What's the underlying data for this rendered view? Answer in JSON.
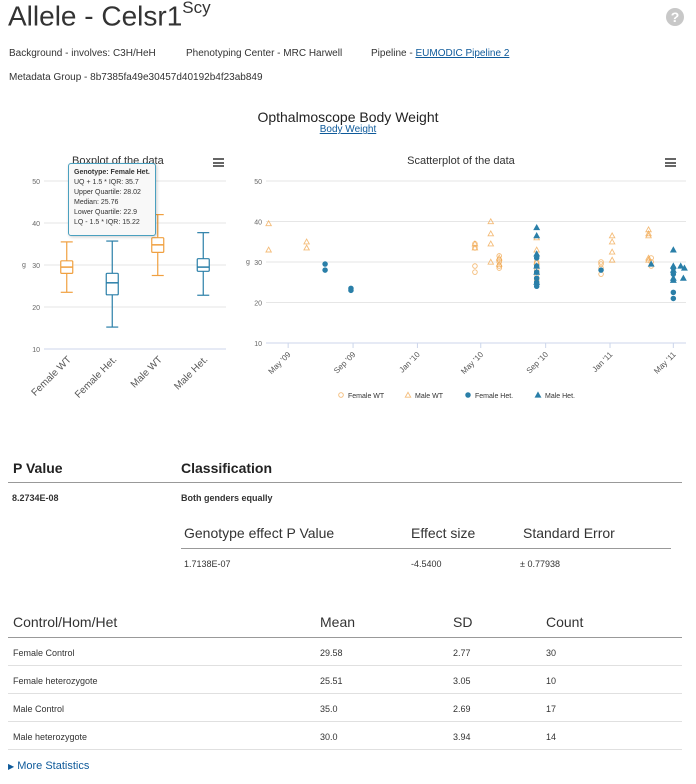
{
  "header": {
    "title": "Allele - Celsr1",
    "title_sup": "Scy",
    "background_label": "Background - involves: C3H/HeH",
    "center_label": "Phenotyping Center - MRC Harwell",
    "pipeline_label": "Pipeline - ",
    "pipeline_link": "EUMODIC Pipeline 2",
    "metadata_group": "Metadata Group - 8b7385fa49e30457d40192b4f23ab849",
    "help_icon": "?"
  },
  "figure": {
    "title": "Opthalmoscope Body Weight",
    "subtitle_link": "Body Weight"
  },
  "colors": {
    "wt": "#f0a040",
    "het": "#2a7fa8",
    "grid": "#e6e6e6"
  },
  "tooltip": {
    "heading": "Genotype: Female Het.",
    "lines": [
      "UQ + 1.5 * IQR: 35.7",
      "Upper Quartile: 28.02",
      "Median: 25.76",
      "Lower Quartile: 22.9",
      "LQ - 1.5 * IQR: 15.22"
    ]
  },
  "chart_data": [
    {
      "type": "box",
      "title": "Boxplot of the data",
      "ylabel": "g",
      "ylim": [
        10,
        50
      ],
      "yticks": [
        "50",
        "40",
        "30",
        "20",
        "10"
      ],
      "categories": [
        "Female WT",
        "Female Het.",
        "Male WT",
        "Male Het."
      ],
      "boxes": [
        {
          "name": "Female WT",
          "low": 23.5,
          "q1": 28.0,
          "median": 29.5,
          "q3": 31.0,
          "high": 35.5,
          "color": "wt"
        },
        {
          "name": "Female Het.",
          "low": 15.22,
          "q1": 22.9,
          "median": 25.76,
          "q3": 28.02,
          "high": 35.7,
          "color": "het"
        },
        {
          "name": "Male WT",
          "low": 27.5,
          "q1": 33.0,
          "median": 34.8,
          "q3": 36.5,
          "high": 42.0,
          "color": "wt"
        },
        {
          "name": "Male Het.",
          "low": 22.8,
          "q1": 28.5,
          "median": 29.5,
          "q3": 31.5,
          "high": 37.7,
          "color": "het"
        }
      ]
    },
    {
      "type": "scatter",
      "title": "Scatterplot of the data",
      "ylabel": "g",
      "ylim": [
        10,
        50
      ],
      "yticks": [
        "50",
        "40",
        "30",
        "20",
        "10"
      ],
      "x_range": [
        "2009-03-20",
        "2011-05-25"
      ],
      "xticks": [
        {
          "label": "May '09",
          "date": "2009-05-01"
        },
        {
          "label": "Sep '09",
          "date": "2009-09-01"
        },
        {
          "label": "Jan '10",
          "date": "2010-01-01"
        },
        {
          "label": "May '10",
          "date": "2010-05-01"
        },
        {
          "label": "Sep '10",
          "date": "2010-09-01"
        },
        {
          "label": "Jan '11",
          "date": "2011-01-01"
        },
        {
          "label": "May '11",
          "date": "2011-05-01"
        }
      ],
      "legend": [
        {
          "name": "Female WT",
          "marker": "circle",
          "color": "wt"
        },
        {
          "name": "Male WT",
          "marker": "triangle",
          "color": "wt"
        },
        {
          "name": "Female Het.",
          "marker": "circle",
          "color": "het"
        },
        {
          "name": "Male Het.",
          "marker": "triangle",
          "color": "het"
        }
      ],
      "series": [
        {
          "name": "Female WT",
          "marker": "circle",
          "color": "wt",
          "points": [
            [
              "2010-04-20",
              29.0
            ],
            [
              "2010-04-20",
              27.5
            ],
            [
              "2010-04-20",
              33.5
            ],
            [
              "2010-04-20",
              34.5
            ],
            [
              "2010-06-05",
              30.0
            ],
            [
              "2010-06-05",
              28.5
            ],
            [
              "2010-06-05",
              31.5
            ],
            [
              "2010-06-05",
              29.0
            ],
            [
              "2010-06-05",
              30.5
            ],
            [
              "2010-08-15",
              28.0
            ],
            [
              "2010-08-15",
              26.0
            ],
            [
              "2010-08-15",
              30.0
            ],
            [
              "2010-08-15",
              27.0
            ],
            [
              "2010-08-15",
              25.5
            ],
            [
              "2010-12-15",
              27.0
            ],
            [
              "2010-12-15",
              28.5
            ],
            [
              "2010-12-15",
              29.5
            ],
            [
              "2010-12-15",
              30.0
            ],
            [
              "2011-03-20",
              30.0
            ],
            [
              "2011-03-20",
              29.0
            ],
            [
              "2011-03-20",
              31.0
            ]
          ]
        },
        {
          "name": "Male WT",
          "marker": "triangle",
          "color": "wt",
          "points": [
            [
              "2009-03-25",
              39.5
            ],
            [
              "2009-03-25",
              33.0
            ],
            [
              "2009-06-05",
              35.0
            ],
            [
              "2009-06-05",
              33.5
            ],
            [
              "2010-04-20",
              34.5
            ],
            [
              "2010-04-20",
              33.5
            ],
            [
              "2010-05-20",
              40.0
            ],
            [
              "2010-05-20",
              37.0
            ],
            [
              "2010-05-20",
              34.5
            ],
            [
              "2010-05-20",
              30.0
            ],
            [
              "2010-06-05",
              31.0
            ],
            [
              "2010-06-05",
              29.5
            ],
            [
              "2010-08-15",
              36.0
            ],
            [
              "2010-08-15",
              33.0
            ],
            [
              "2010-08-15",
              30.0
            ],
            [
              "2011-01-05",
              36.5
            ],
            [
              "2011-01-05",
              35.0
            ],
            [
              "2011-01-05",
              32.5
            ],
            [
              "2011-01-05",
              30.5
            ],
            [
              "2011-03-15",
              38.0
            ],
            [
              "2011-03-15",
              37.0
            ],
            [
              "2011-03-15",
              36.5
            ],
            [
              "2011-03-15",
              31.0
            ],
            [
              "2011-03-15",
              30.5
            ]
          ]
        },
        {
          "name": "Female Het.",
          "marker": "circle",
          "color": "het",
          "points": [
            [
              "2009-07-10",
              29.5
            ],
            [
              "2009-07-10",
              28.0
            ],
            [
              "2009-08-28",
              23.5
            ],
            [
              "2009-08-28",
              23.0
            ],
            [
              "2010-08-15",
              31.0
            ],
            [
              "2010-08-15",
              29.0
            ],
            [
              "2010-08-15",
              27.5
            ],
            [
              "2010-08-15",
              26.0
            ],
            [
              "2010-08-15",
              25.0
            ],
            [
              "2010-08-15",
              24.0
            ],
            [
              "2010-12-15",
              28.0
            ],
            [
              "2011-05-01",
              28.5
            ],
            [
              "2011-05-01",
              27.0
            ],
            [
              "2011-05-01",
              22.5
            ],
            [
              "2011-05-01",
              21.0
            ]
          ]
        },
        {
          "name": "Male Het.",
          "marker": "triangle",
          "color": "het",
          "points": [
            [
              "2010-08-15",
              38.5
            ],
            [
              "2010-08-15",
              36.5
            ],
            [
              "2010-08-15",
              32.0
            ],
            [
              "2010-08-15",
              29.0
            ],
            [
              "2010-08-15",
              27.5
            ],
            [
              "2010-08-15",
              25.0
            ],
            [
              "2011-03-20",
              29.5
            ],
            [
              "2011-05-01",
              33.0
            ],
            [
              "2011-05-01",
              29.0
            ],
            [
              "2011-05-01",
              28.0
            ],
            [
              "2011-05-01",
              26.0
            ],
            [
              "2011-05-01",
              25.5
            ],
            [
              "2011-05-15",
              29.0
            ],
            [
              "2011-05-20",
              26.0
            ],
            [
              "2011-05-22",
              28.5
            ]
          ]
        }
      ]
    }
  ],
  "results": {
    "pvalue_header": "P Value",
    "classification_header": "Classification",
    "pvalue": "8.2734E-08",
    "classification": "Both genders equally",
    "effect_headers": [
      "Genotype effect P Value",
      "Effect size",
      "Standard Error"
    ],
    "effect_values": [
      "1.7138E-07",
      "-4.5400",
      "± 0.77938"
    ]
  },
  "stats": {
    "headers": [
      "Control/Hom/Het",
      "Mean",
      "SD",
      "Count"
    ],
    "rows": [
      [
        "Female Control",
        "29.58",
        "2.77",
        "30"
      ],
      [
        "Female heterozygote",
        "25.51",
        "3.05",
        "10"
      ],
      [
        "Male Control",
        "35.0",
        "2.69",
        "17"
      ],
      [
        "Male heterozygote",
        "30.0",
        "3.94",
        "14"
      ]
    ],
    "more_link": "More Statistics"
  }
}
